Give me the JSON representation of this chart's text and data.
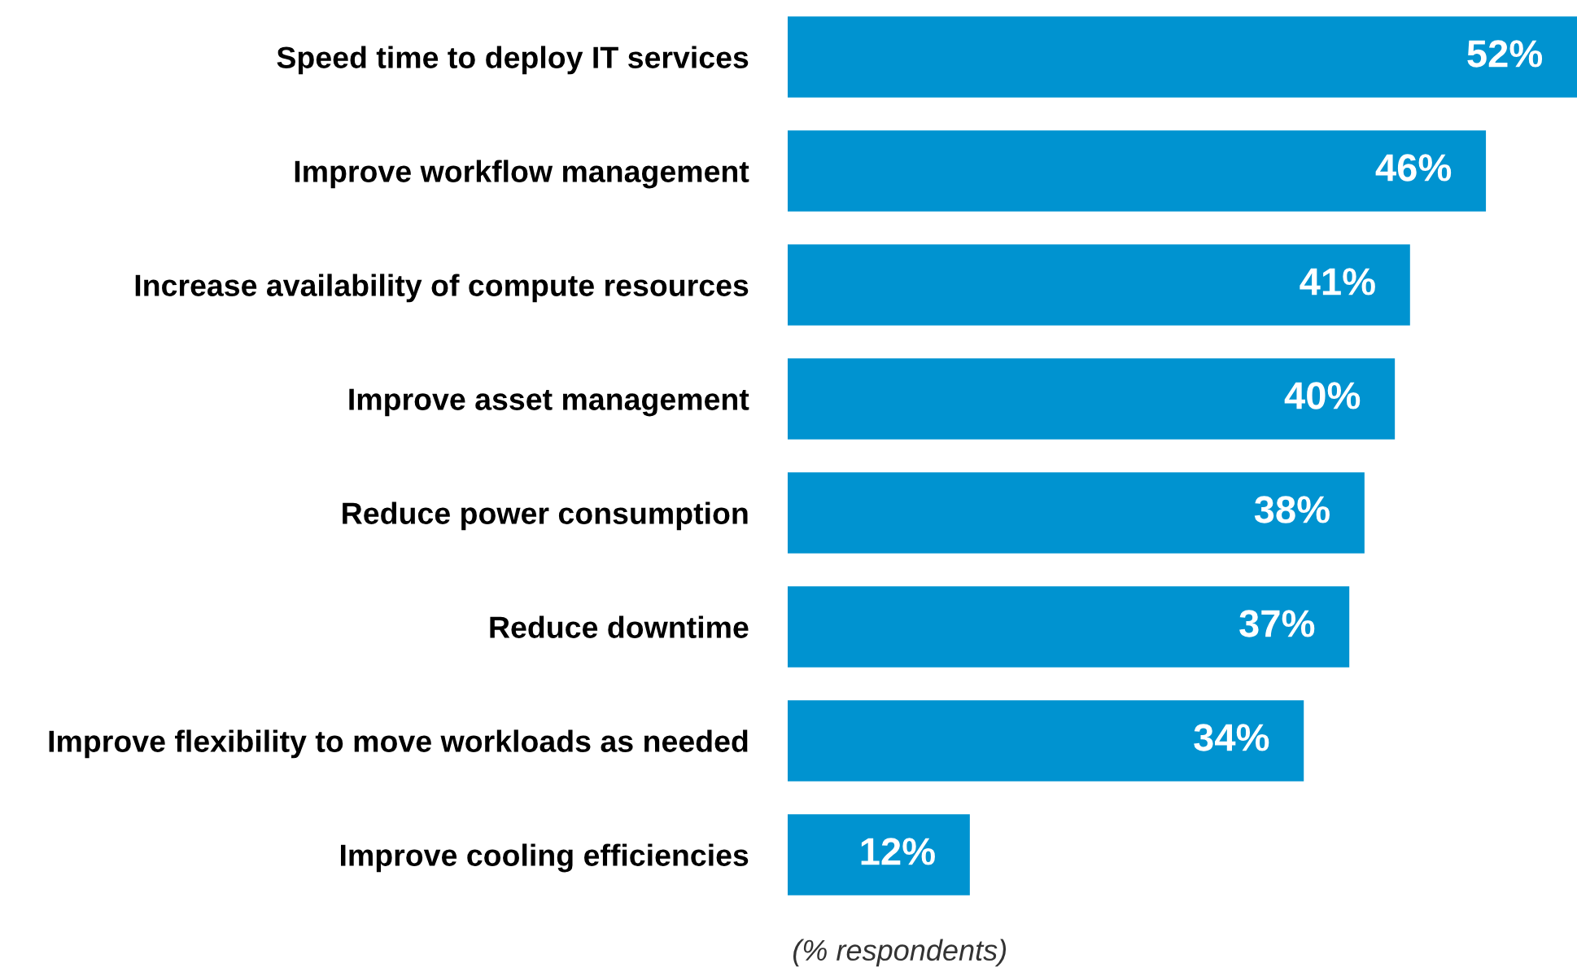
{
  "chart_data": {
    "type": "bar",
    "orientation": "horizontal",
    "xlabel": "(% respondents)",
    "categories": [
      "Speed time to deploy IT services",
      "Improve workflow management",
      "Increase availability of compute resources",
      "Improve asset management",
      "Reduce power consumption",
      "Reduce downtime",
      "Improve flexibility to move workloads as needed",
      "Improve cooling efficiencies"
    ],
    "values": [
      52,
      46,
      41,
      40,
      38,
      37,
      34,
      12
    ],
    "value_labels": [
      "52%",
      "46%",
      "41%",
      "40%",
      "38%",
      "37%",
      "34%",
      "12%"
    ],
    "color": "#0093d0",
    "tick_labels": "y",
    "grid": false,
    "legend": false
  }
}
